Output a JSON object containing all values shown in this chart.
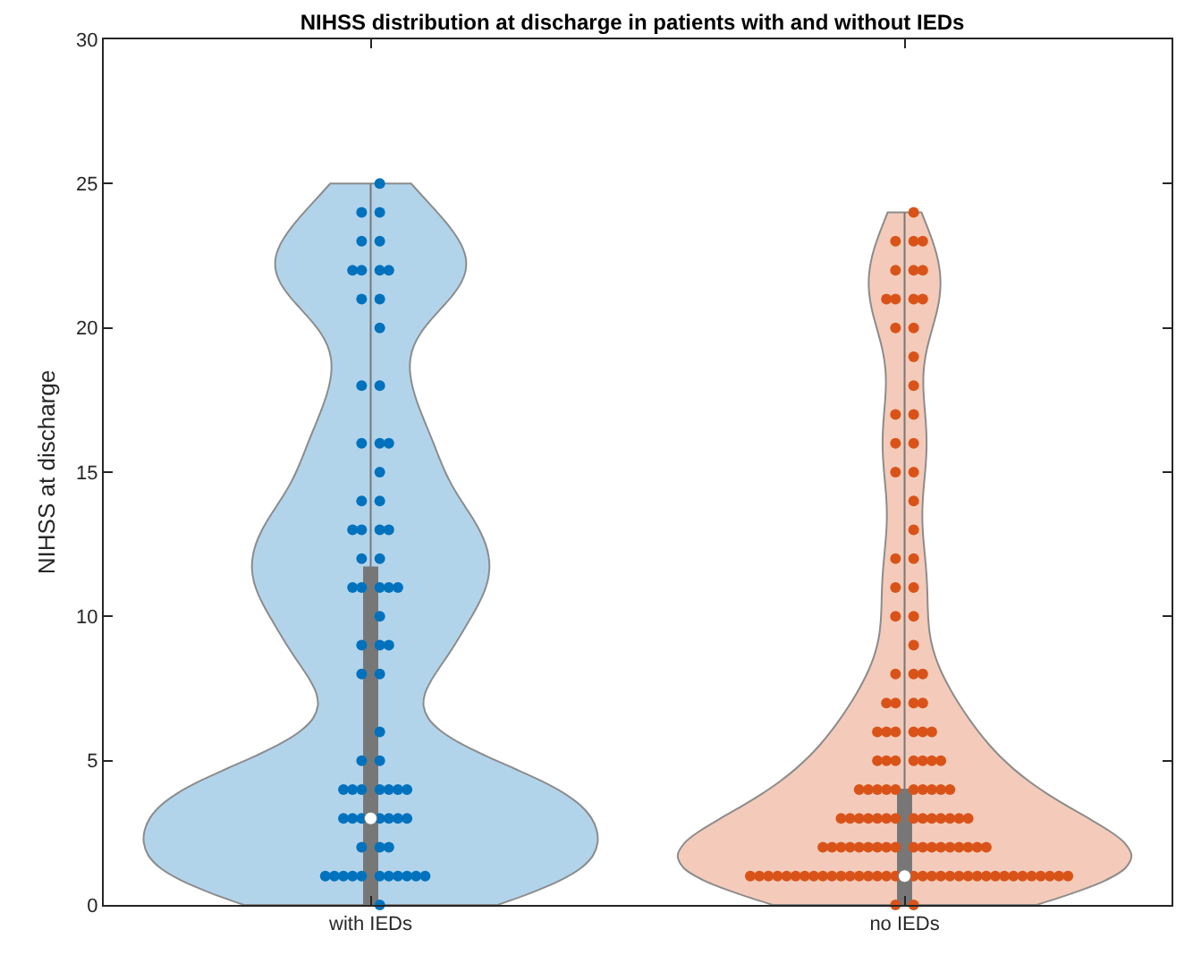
{
  "chart_data": {
    "type": "box",
    "title": "NIHSS distribution at discharge in patients with and without IEDs",
    "ylabel": "NIHSS at discharge",
    "categories": [
      "with IEDs",
      "no IEDs"
    ],
    "boxes": [
      {
        "q1": 0,
        "median": 3,
        "q3": 11.7,
        "high": 25
      },
      {
        "q1": 0,
        "median": 1,
        "q3": 4,
        "high": 24
      }
    ],
    "ylim": [
      0,
      30
    ],
    "yticks": [
      0,
      5,
      10,
      15,
      20,
      25,
      30
    ],
    "grid": false,
    "marker": "circle",
    "series": [
      {
        "type": "scatter",
        "color": "#0072bd",
        "x": [
          "with IEDs",
          "with IEDs",
          "with IEDs",
          "with IEDs",
          "with IEDs",
          "with IEDs",
          "with IEDs",
          "with IEDs",
          "with IEDs",
          "with IEDs",
          "with IEDs",
          "with IEDs",
          "with IEDs",
          "with IEDs",
          "with IEDs",
          "with IEDs",
          "with IEDs",
          "with IEDs",
          "with IEDs",
          "with IEDs",
          "with IEDs",
          "with IEDs",
          "with IEDs",
          "with IEDs",
          "with IEDs",
          "with IEDs",
          "with IEDs",
          "with IEDs",
          "with IEDs",
          "with IEDs",
          "with IEDs",
          "with IEDs",
          "with IEDs",
          "with IEDs",
          "with IEDs",
          "with IEDs",
          "with IEDs",
          "with IEDs",
          "with IEDs",
          "with IEDs",
          "with IEDs",
          "with IEDs",
          "with IEDs",
          "with IEDs",
          "with IEDs",
          "with IEDs",
          "with IEDs",
          "with IEDs",
          "with IEDs",
          "with IEDs",
          "with IEDs",
          "with IEDs",
          "with IEDs",
          "with IEDs",
          "with IEDs",
          "with IEDs",
          "with IEDs",
          "with IEDs",
          "with IEDs",
          "with IEDs",
          "with IEDs",
          "with IEDs",
          "with IEDs",
          "with IEDs",
          "with IEDs",
          "with IEDs",
          "with IEDs",
          "with IEDs",
          "with IEDs"
        ],
        "values": [
          25,
          24,
          24,
          23,
          23,
          22,
          22,
          22,
          22,
          21,
          21,
          20,
          18,
          18,
          16,
          16,
          16,
          15,
          14,
          14,
          13,
          13,
          13,
          13,
          12,
          12,
          11,
          11,
          11,
          11,
          11,
          10,
          9,
          9,
          9,
          8,
          8,
          6,
          5,
          5,
          4,
          4,
          4,
          4,
          4,
          4,
          4,
          3,
          3,
          3,
          3,
          3,
          3,
          3,
          2,
          2,
          2,
          1,
          1,
          1,
          1,
          1,
          1,
          1,
          1,
          1,
          1,
          1,
          0
        ]
      },
      {
        "type": "scatter",
        "color": "#d95319",
        "x": [
          "no IEDs",
          "no IEDs",
          "no IEDs",
          "no IEDs",
          "no IEDs",
          "no IEDs",
          "no IEDs",
          "no IEDs",
          "no IEDs",
          "no IEDs",
          "no IEDs",
          "no IEDs",
          "no IEDs",
          "no IEDs",
          "no IEDs",
          "no IEDs",
          "no IEDs",
          "no IEDs",
          "no IEDs",
          "no IEDs",
          "no IEDs",
          "no IEDs",
          "no IEDs",
          "no IEDs",
          "no IEDs",
          "no IEDs",
          "no IEDs",
          "no IEDs",
          "no IEDs",
          "no IEDs",
          "no IEDs",
          "no IEDs",
          "no IEDs",
          "no IEDs",
          "no IEDs",
          "no IEDs",
          "no IEDs",
          "no IEDs",
          "no IEDs",
          "no IEDs",
          "no IEDs",
          "no IEDs",
          "no IEDs",
          "no IEDs",
          "no IEDs",
          "no IEDs",
          "no IEDs",
          "no IEDs",
          "no IEDs",
          "no IEDs",
          "no IEDs",
          "no IEDs",
          "no IEDs",
          "no IEDs",
          "no IEDs",
          "no IEDs",
          "no IEDs",
          "no IEDs",
          "no IEDs",
          "no IEDs",
          "no IEDs",
          "no IEDs",
          "no IEDs",
          "no IEDs",
          "no IEDs",
          "no IEDs",
          "no IEDs",
          "no IEDs",
          "no IEDs",
          "no IEDs",
          "no IEDs",
          "no IEDs",
          "no IEDs",
          "no IEDs",
          "no IEDs",
          "no IEDs",
          "no IEDs",
          "no IEDs",
          "no IEDs",
          "no IEDs",
          "no IEDs",
          "no IEDs",
          "no IEDs",
          "no IEDs",
          "no IEDs",
          "no IEDs",
          "no IEDs",
          "no IEDs",
          "no IEDs",
          "no IEDs",
          "no IEDs",
          "no IEDs",
          "no IEDs",
          "no IEDs",
          "no IEDs",
          "no IEDs",
          "no IEDs",
          "no IEDs",
          "no IEDs",
          "no IEDs",
          "no IEDs",
          "no IEDs",
          "no IEDs",
          "no IEDs",
          "no IEDs",
          "no IEDs",
          "no IEDs",
          "no IEDs",
          "no IEDs",
          "no IEDs",
          "no IEDs",
          "no IEDs",
          "no IEDs",
          "no IEDs",
          "no IEDs",
          "no IEDs",
          "no IEDs",
          "no IEDs",
          "no IEDs",
          "no IEDs",
          "no IEDs",
          "no IEDs",
          "no IEDs",
          "no IEDs",
          "no IEDs",
          "no IEDs",
          "no IEDs",
          "no IEDs",
          "no IEDs"
        ],
        "values": [
          24,
          23,
          23,
          23,
          22,
          22,
          22,
          21,
          21,
          21,
          21,
          20,
          20,
          19,
          18,
          17,
          17,
          16,
          16,
          15,
          15,
          14,
          13,
          12,
          12,
          11,
          11,
          10,
          10,
          9,
          8,
          8,
          8,
          7,
          7,
          7,
          7,
          6,
          6,
          6,
          6,
          6,
          6,
          5,
          5,
          5,
          5,
          5,
          5,
          5,
          4,
          4,
          4,
          4,
          4,
          4,
          4,
          4,
          4,
          4,
          3,
          3,
          3,
          3,
          3,
          3,
          3,
          3,
          3,
          3,
          3,
          3,
          3,
          3,
          2,
          2,
          2,
          2,
          2,
          2,
          2,
          2,
          2,
          2,
          2,
          2,
          2,
          2,
          2,
          2,
          2,
          2,
          1,
          1,
          1,
          1,
          1,
          1,
          1,
          1,
          1,
          1,
          1,
          1,
          1,
          1,
          1,
          1,
          1,
          1,
          1,
          1,
          1,
          1,
          1,
          1,
          1,
          1,
          1,
          1,
          1,
          1,
          1,
          1,
          1,
          1,
          1,
          0,
          0
        ]
      }
    ]
  }
}
